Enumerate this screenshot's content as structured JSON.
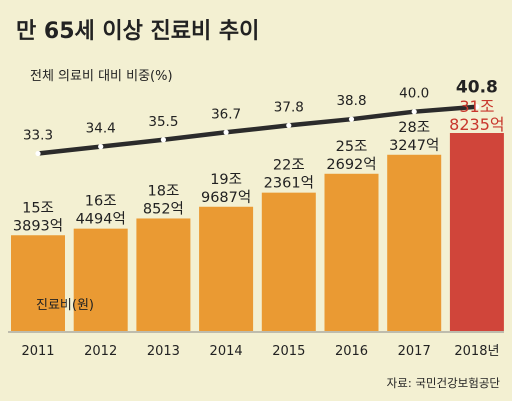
{
  "chart_data": {
    "type": "bar",
    "title": "만 65세 이상 진료비 추이",
    "categories": [
      "2011",
      "2012",
      "2013",
      "2014",
      "2015",
      "2016",
      "2017",
      "2018년"
    ],
    "series": [
      {
        "name": "진료비(원)",
        "values": [
          "15조 3893억",
          "16조 4494억",
          "18조 852억",
          "19조 9687억",
          "22조 2361억",
          "25조 2692억",
          "28조 3247억",
          "31조 8235억"
        ],
        "values_trillion_won": [
          15.3893,
          16.4494,
          18.0852,
          19.9687,
          22.2361,
          25.2692,
          28.3247,
          31.8235
        ]
      },
      {
        "name": "전체 의료비 대비 비중(%)",
        "type": "line",
        "values": [
          33.3,
          34.4,
          35.5,
          36.7,
          37.8,
          38.8,
          40.0,
          40.8
        ],
        "value_labels": [
          "33.3",
          "34.4",
          "35.5",
          "36.7",
          "37.8",
          "38.8",
          "40.0",
          "40.8"
        ]
      }
    ],
    "source": "자료: 국민건강보험공단",
    "colors": {
      "background": "#f3f0d2",
      "bar": "#ea9a33",
      "bar_highlight": "#d0453a",
      "highlight_text": "#c8372d",
      "line": "#2b2b2b",
      "marker": "#ffffff",
      "axis": "#888888",
      "text": "#222222"
    }
  }
}
